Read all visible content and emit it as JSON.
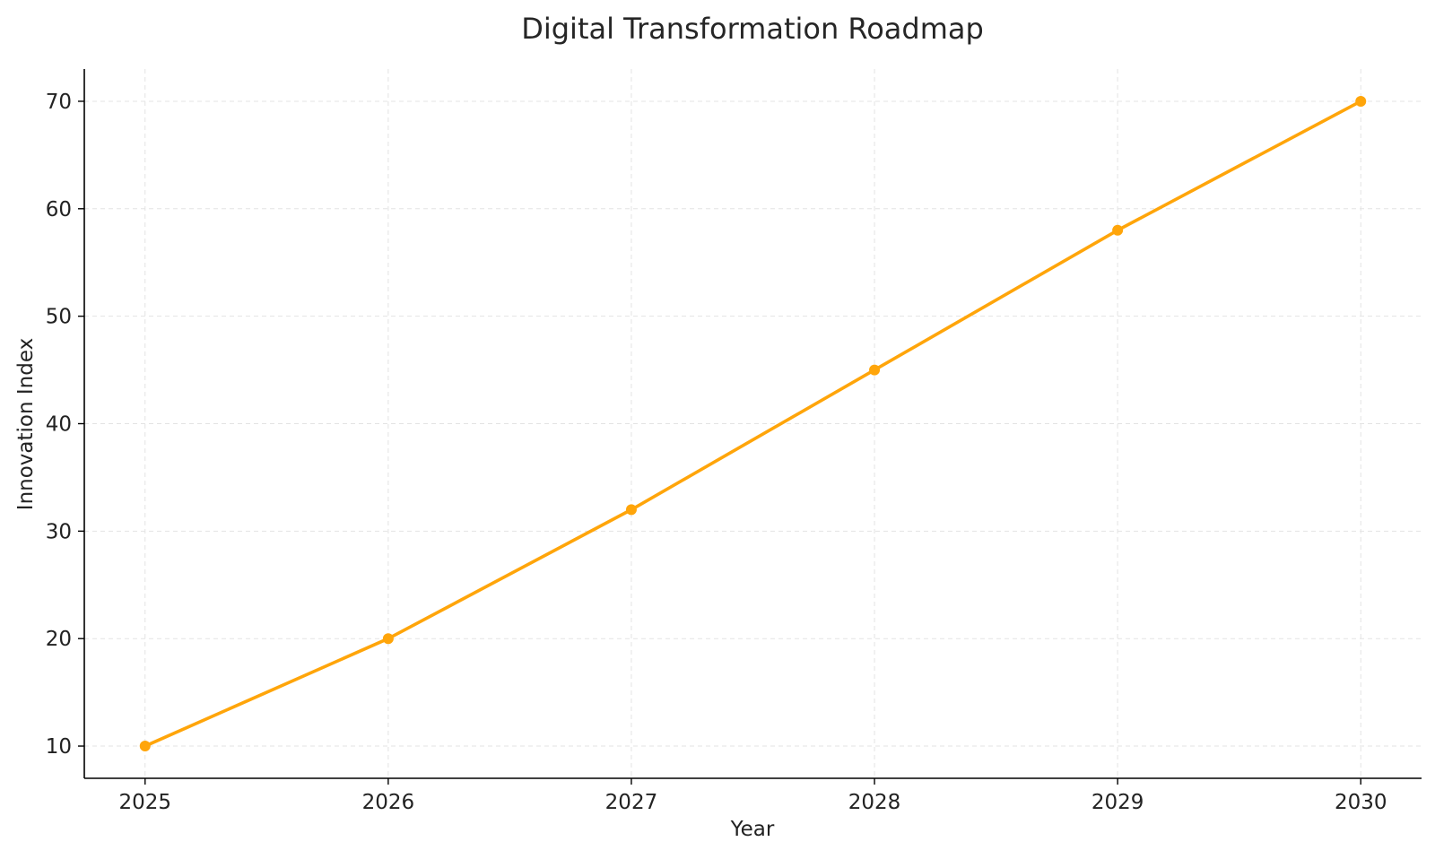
{
  "chart_data": {
    "type": "line",
    "title": "Digital Transformation Roadmap",
    "xlabel": "Year",
    "ylabel": "Innovation Index",
    "x": [
      2025,
      2026,
      2027,
      2028,
      2029,
      2030
    ],
    "xticks": [
      "2025",
      "2026",
      "2027",
      "2028",
      "2029",
      "2030"
    ],
    "yticks": [
      10,
      20,
      30,
      40,
      50,
      60,
      70
    ],
    "xlim": [
      2024.75,
      2030.25
    ],
    "ylim": [
      7,
      73
    ],
    "grid": true,
    "series": [
      {
        "values": [
          10,
          20,
          32,
          45,
          58,
          70
        ],
        "color": "#ffa50a",
        "marker": "circle"
      }
    ]
  }
}
